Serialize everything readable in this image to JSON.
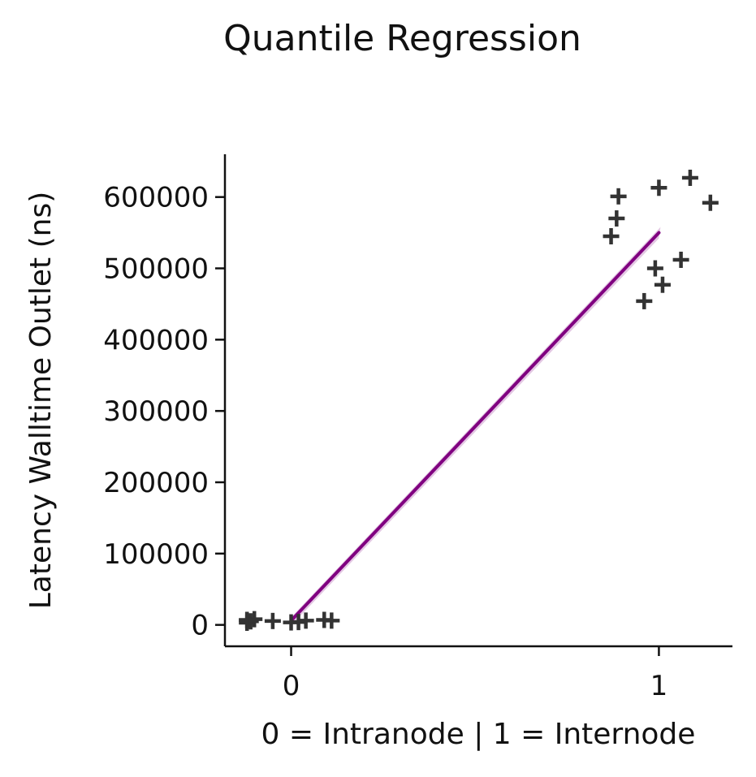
{
  "chart_data": {
    "type": "scatter",
    "title": "Quantile Regression",
    "xlabel": "0 = Intranode | 1 = Internode",
    "ylabel": "Latency Walltime Outlet (ns)",
    "xlim": [
      -0.18,
      1.2
    ],
    "ylim": [
      -30000,
      660000
    ],
    "xticks": [
      0,
      1
    ],
    "yticks": [
      0,
      100000,
      200000,
      300000,
      400000,
      500000,
      600000
    ],
    "points": [
      {
        "x": -0.12,
        "y": 7000
      },
      {
        "x": -0.11,
        "y": 5000
      },
      {
        "x": -0.12,
        "y": 3000
      },
      {
        "x": -0.1,
        "y": 8000
      },
      {
        "x": -0.12,
        "y": 6500
      },
      {
        "x": -0.05,
        "y": 5500
      },
      {
        "x": 0.0,
        "y": 3500
      },
      {
        "x": 0.02,
        "y": 4000
      },
      {
        "x": 0.04,
        "y": 6000
      },
      {
        "x": 0.09,
        "y": 7000
      },
      {
        "x": 0.11,
        "y": 6000
      },
      {
        "x": 0.87,
        "y": 545000
      },
      {
        "x": 0.885,
        "y": 570000
      },
      {
        "x": 0.89,
        "y": 601000
      },
      {
        "x": 0.96,
        "y": 454000
      },
      {
        "x": 0.99,
        "y": 500000
      },
      {
        "x": 1.0,
        "y": 613000
      },
      {
        "x": 1.01,
        "y": 477000
      },
      {
        "x": 1.06,
        "y": 512000
      },
      {
        "x": 1.085,
        "y": 627000
      },
      {
        "x": 1.14,
        "y": 592000
      }
    ],
    "regression_line": {
      "x": [
        0,
        1
      ],
      "y": [
        6000,
        550000
      ],
      "color": "#800080"
    },
    "marker": "plus",
    "marker_color": "#333333"
  }
}
